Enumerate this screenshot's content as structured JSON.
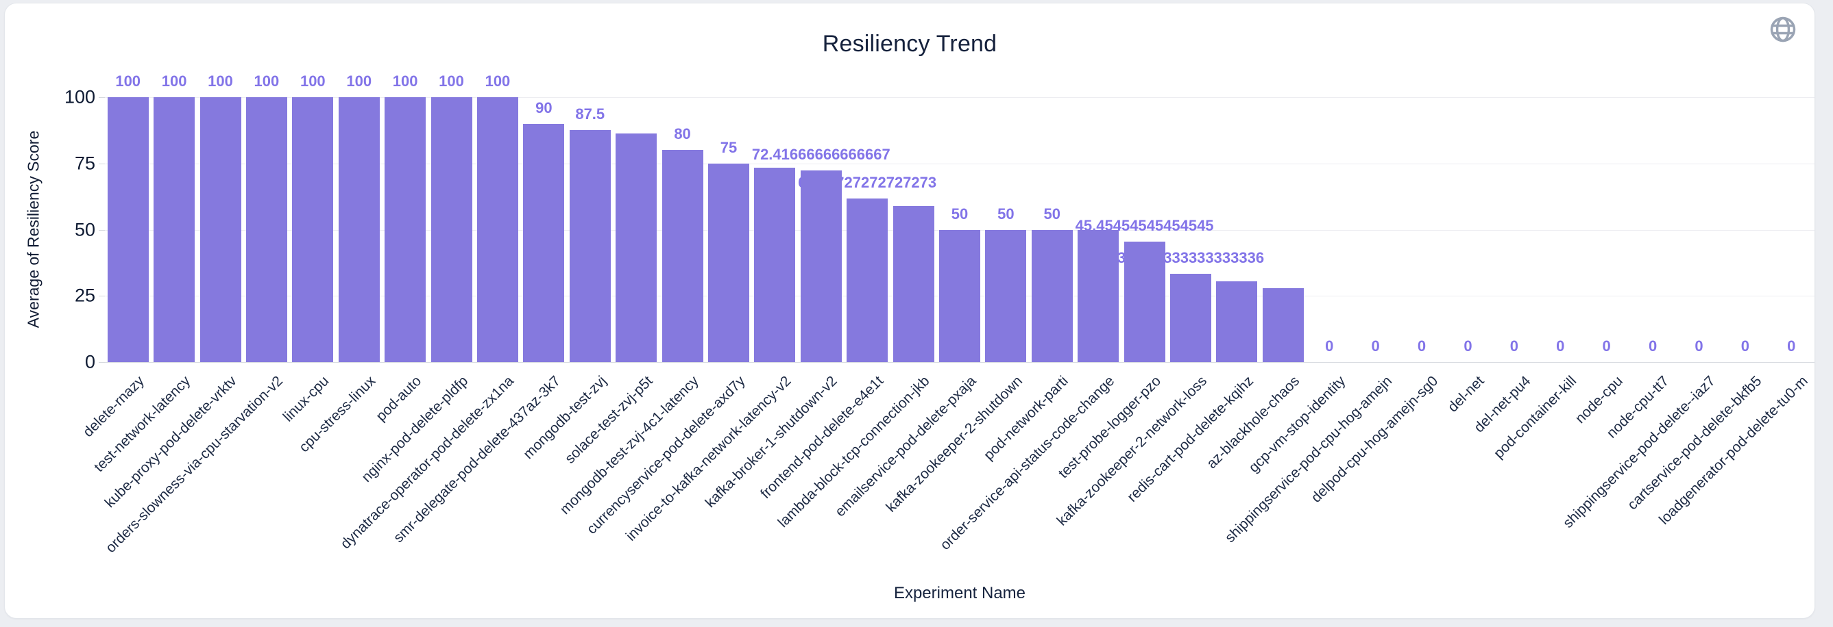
{
  "page": {
    "background_color": "#eceef2",
    "card_background": "#ffffff"
  },
  "header": {
    "globe_icon": "globe-icon",
    "globe_color": "#9aa4b4"
  },
  "chart_data": {
    "type": "bar",
    "title": "Resiliency Trend",
    "xlabel": "Experiment Name",
    "ylabel": "Average of Resiliency Score",
    "ylim": [
      0,
      100
    ],
    "yticks": [
      "0",
      "25",
      "50",
      "75",
      "100"
    ],
    "grid": true,
    "legend_position": "none",
    "bar_color": "#8579de",
    "value_label_color": "#8274e8",
    "axis_text_color": "#0f1b33",
    "grid_color": "#ededf1",
    "categories": [
      "delete-rnazy",
      "test-network-latency",
      "kube-proxy-pod-delete-vrktv",
      "orders-slowness-via-cpu-starvation-v2",
      "linux-cpu",
      "cpu-stress-linux",
      "pod-auto",
      "nginx-pod-delete-pldfp",
      "dynatrace-operator-pod-delete-zx1na",
      "smr-delegate-pod-delete-437az-3k7",
      "mongodb-test-zvj",
      "solace-test-zvj-p5t",
      "mongodb-test-zvj-4c1-latency",
      "currencyservice-pod-delete-axd7y",
      "invoice-to-kafka-network-latency-v2",
      "kafka-broker-1-shutdown-v2",
      "frontend-pod-delete-e4e1t",
      "lambda-block-tcp-connection-jkb",
      "emailservice-pod-delete-pxaja",
      "kafka-zookeeper-2-shutdown",
      "pod-network-parti",
      "order-service-api-status-code-change",
      "test-probe-logger-pzo",
      "kafka-zookeeper-2-network-loss",
      "redis-cart-pod-delete-kqihz",
      "az-blackhole-chaos",
      "gcp-vm-stop-identity",
      "shippingservice-pod-cpu-hog-amejn",
      "delpod-cpu-hog-amejn-sg0",
      "del-net",
      "del-net-pu4",
      "pod-container-kill",
      "node-cpu",
      "node-cpu-tt7",
      "shippingservice-pod-delete--iaz7",
      "cartservice-pod-delete-bkfb5",
      "loadgenerator-pod-delete-tu0-m"
    ],
    "values": [
      100,
      100,
      100,
      100,
      100,
      100,
      100,
      100,
      100,
      90,
      87.5,
      86.3,
      80,
      75,
      73.4,
      72.41666666666667,
      61.72727272727273,
      59,
      50,
      50,
      50,
      50,
      45.45454545454545,
      33.333333333333336,
      30.4,
      27.8,
      0,
      0,
      0,
      0,
      0,
      0,
      0,
      0,
      0,
      0,
      0
    ],
    "value_labels": [
      "100",
      "100",
      "100",
      "100",
      "100",
      "100",
      "100",
      "100",
      "100",
      "90",
      "87.5",
      "",
      "80",
      "75",
      "",
      "72.41666666666667",
      "61.72727272727273",
      "",
      "50",
      "50",
      "50",
      "",
      "45.45454545454545",
      "33.333333333333336",
      "",
      "",
      "0",
      "0",
      "0",
      "0",
      "0",
      "0",
      "0",
      "0",
      "0",
      "0",
      "0"
    ]
  }
}
